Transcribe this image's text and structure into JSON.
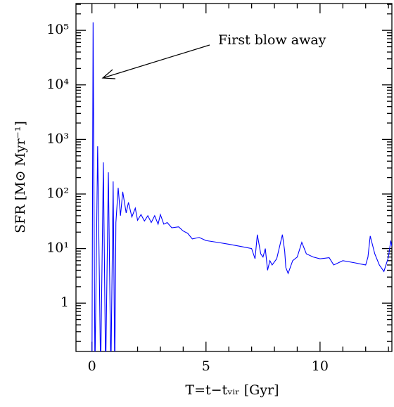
{
  "chart_data": {
    "type": "line",
    "xlabel": "T=t−tᵥᵢᵣ [Gyr]",
    "ylabel": "SFR [M⊙ Myr⁻¹]",
    "annotation": "First blow away",
    "log_y": true,
    "xlim": [
      -0.7,
      13.15
    ],
    "ylim": [
      0.13,
      310000
    ],
    "xticks": [
      0,
      5,
      10
    ],
    "yticks": [
      1,
      {
        "value": 10,
        "label": "10¹"
      },
      {
        "value": 100,
        "label": "10²"
      },
      {
        "value": 1000,
        "label": "10³"
      },
      {
        "value": 10000,
        "label": "10⁴"
      },
      {
        "value": 100000,
        "label": "10⁵"
      }
    ],
    "series": [
      {
        "name": null,
        "color": "#0000ff",
        "x": [
          0,
          0.05,
          0.13,
          0.25,
          0.38,
          0.5,
          0.6,
          0.72,
          0.83,
          0.93,
          1.0,
          1.05,
          1.15,
          1.25,
          1.35,
          1.5,
          1.6,
          1.75,
          1.9,
          2.0,
          2.15,
          2.3,
          2.45,
          2.6,
          2.75,
          2.9,
          3.0,
          3.15,
          3.3,
          3.5,
          3.8,
          4.0,
          4.2,
          4.4,
          4.7,
          5.0,
          5.5,
          6.0,
          6.5,
          7.0,
          7.15,
          7.25,
          7.4,
          7.5,
          7.6,
          7.7,
          7.8,
          7.9,
          8.1,
          8.25,
          8.35,
          8.45,
          8.5,
          8.6,
          8.8,
          9.0,
          9.2,
          9.4,
          9.7,
          10.0,
          10.4,
          10.6,
          11.0,
          11.5,
          12.0,
          12.1,
          12.2,
          12.4,
          12.6,
          12.8,
          13.0,
          13.1,
          13.15
        ],
        "values": [
          0.05,
          140000,
          0.05,
          750,
          0.05,
          380,
          0.05,
          250,
          0.05,
          170,
          0.05,
          30,
          130,
          40,
          110,
          45,
          70,
          38,
          55,
          33,
          42,
          32,
          40,
          30,
          40,
          28,
          42,
          28,
          30,
          24,
          25,
          21,
          19,
          15,
          16,
          14,
          13,
          12,
          11,
          10,
          6.5,
          18,
          8,
          7,
          10,
          4,
          6,
          5,
          6.5,
          12,
          18,
          9,
          4.5,
          3.5,
          6,
          7,
          13,
          8,
          7,
          6.5,
          6.8,
          5,
          6,
          5.5,
          5,
          7,
          17,
          8,
          5,
          3.8,
          7,
          14,
          11
        ]
      }
    ]
  }
}
